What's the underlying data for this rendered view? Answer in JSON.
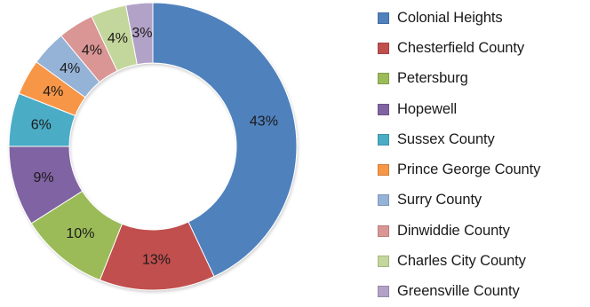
{
  "chart_data": {
    "type": "pie",
    "style": "donut",
    "legend_position": "right",
    "slices": [
      {
        "name": "Colonial Heights",
        "value": 43,
        "label": "43%",
        "color": "#4F81BD"
      },
      {
        "name": "Chesterfield County",
        "value": 13,
        "label": "13%",
        "color": "#C0504D"
      },
      {
        "name": "Petersburg",
        "value": 10,
        "label": "10%",
        "color": "#9BBB59"
      },
      {
        "name": "Hopewell",
        "value": 9,
        "label": "9%",
        "color": "#8064A2"
      },
      {
        "name": "Sussex County",
        "value": 6,
        "label": "6%",
        "color": "#4BACC6"
      },
      {
        "name": "Prince George County",
        "value": 4,
        "label": "4%",
        "color": "#F79646"
      },
      {
        "name": "Surry County",
        "value": 4,
        "label": "4%",
        "color": "#95B3D7"
      },
      {
        "name": "Dinwiddie County",
        "value": 4,
        "label": "4%",
        "color": "#D99694"
      },
      {
        "name": "Charles City County",
        "value": 4,
        "label": "4%",
        "color": "#C3D69B"
      },
      {
        "name": "Greensville County",
        "value": 3,
        "label": "3%",
        "color": "#B3A2C7"
      }
    ]
  }
}
